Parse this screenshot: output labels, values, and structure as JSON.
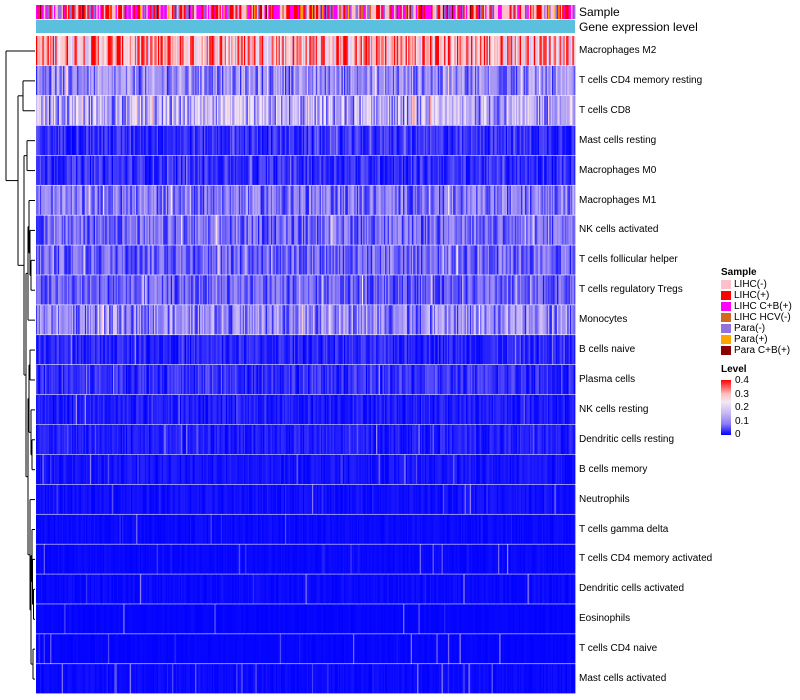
{
  "chart_data": {
    "type": "heatmap",
    "annotation_tracks": [
      "Sample",
      "Gene expression level"
    ],
    "rows": [
      {
        "name": "Macrophages M2",
        "mean": 0.3
      },
      {
        "name": "T cells CD4 memory resting",
        "mean": 0.1
      },
      {
        "name": "T cells CD8",
        "mean": 0.13
      },
      {
        "name": "Mast cells resting",
        "mean": 0.05
      },
      {
        "name": "Macrophages M0",
        "mean": 0.05
      },
      {
        "name": "Macrophages M1",
        "mean": 0.08
      },
      {
        "name": "NK cells activated",
        "mean": 0.07
      },
      {
        "name": "T cells follicular helper",
        "mean": 0.07
      },
      {
        "name": "T cells regulatory  Tregs",
        "mean": 0.06
      },
      {
        "name": "Monocytes",
        "mean": 0.1
      },
      {
        "name": "B cells naive",
        "mean": 0.04
      },
      {
        "name": "Plasma cells",
        "mean": 0.05
      },
      {
        "name": "NK cells resting",
        "mean": 0.03
      },
      {
        "name": "Dendritic cells resting",
        "mean": 0.03
      },
      {
        "name": "B cells memory",
        "mean": 0.02
      },
      {
        "name": "Neutrophils",
        "mean": 0.015
      },
      {
        "name": "T cells gamma delta",
        "mean": 0.01
      },
      {
        "name": "T cells CD4 memory activated",
        "mean": 0.008
      },
      {
        "name": "Dendritic cells activated",
        "mean": 0.01
      },
      {
        "name": "Eosinophils",
        "mean": 0.005
      },
      {
        "name": "T cells CD4 naive",
        "mean": 0.005
      },
      {
        "name": "Mast cells activated",
        "mean": 0.01
      }
    ],
    "sample_legend": {
      "title": "Sample",
      "items": [
        {
          "label": "LIHC(-)",
          "color": "#ffc0cb"
        },
        {
          "label": "LIHC(+)",
          "color": "#ff0000"
        },
        {
          "label": "LIHC C+B(+)",
          "color": "#ff00ff"
        },
        {
          "label": "LIHC HCV(-)",
          "color": "#d2691e"
        },
        {
          "label": "Para(-)",
          "color": "#9370db"
        },
        {
          "label": "Para(+)",
          "color": "#ffa500"
        },
        {
          "label": "Para C+B(+)",
          "color": "#8b0000"
        }
      ]
    },
    "level_legend": {
      "title": "Level",
      "ticks": [
        "0.4",
        "0.3",
        "0.2",
        "0.1",
        "0"
      ],
      "range": [
        0,
        0.4
      ]
    },
    "expression_track_color": "#5bc0de",
    "n_samples": 420
  }
}
